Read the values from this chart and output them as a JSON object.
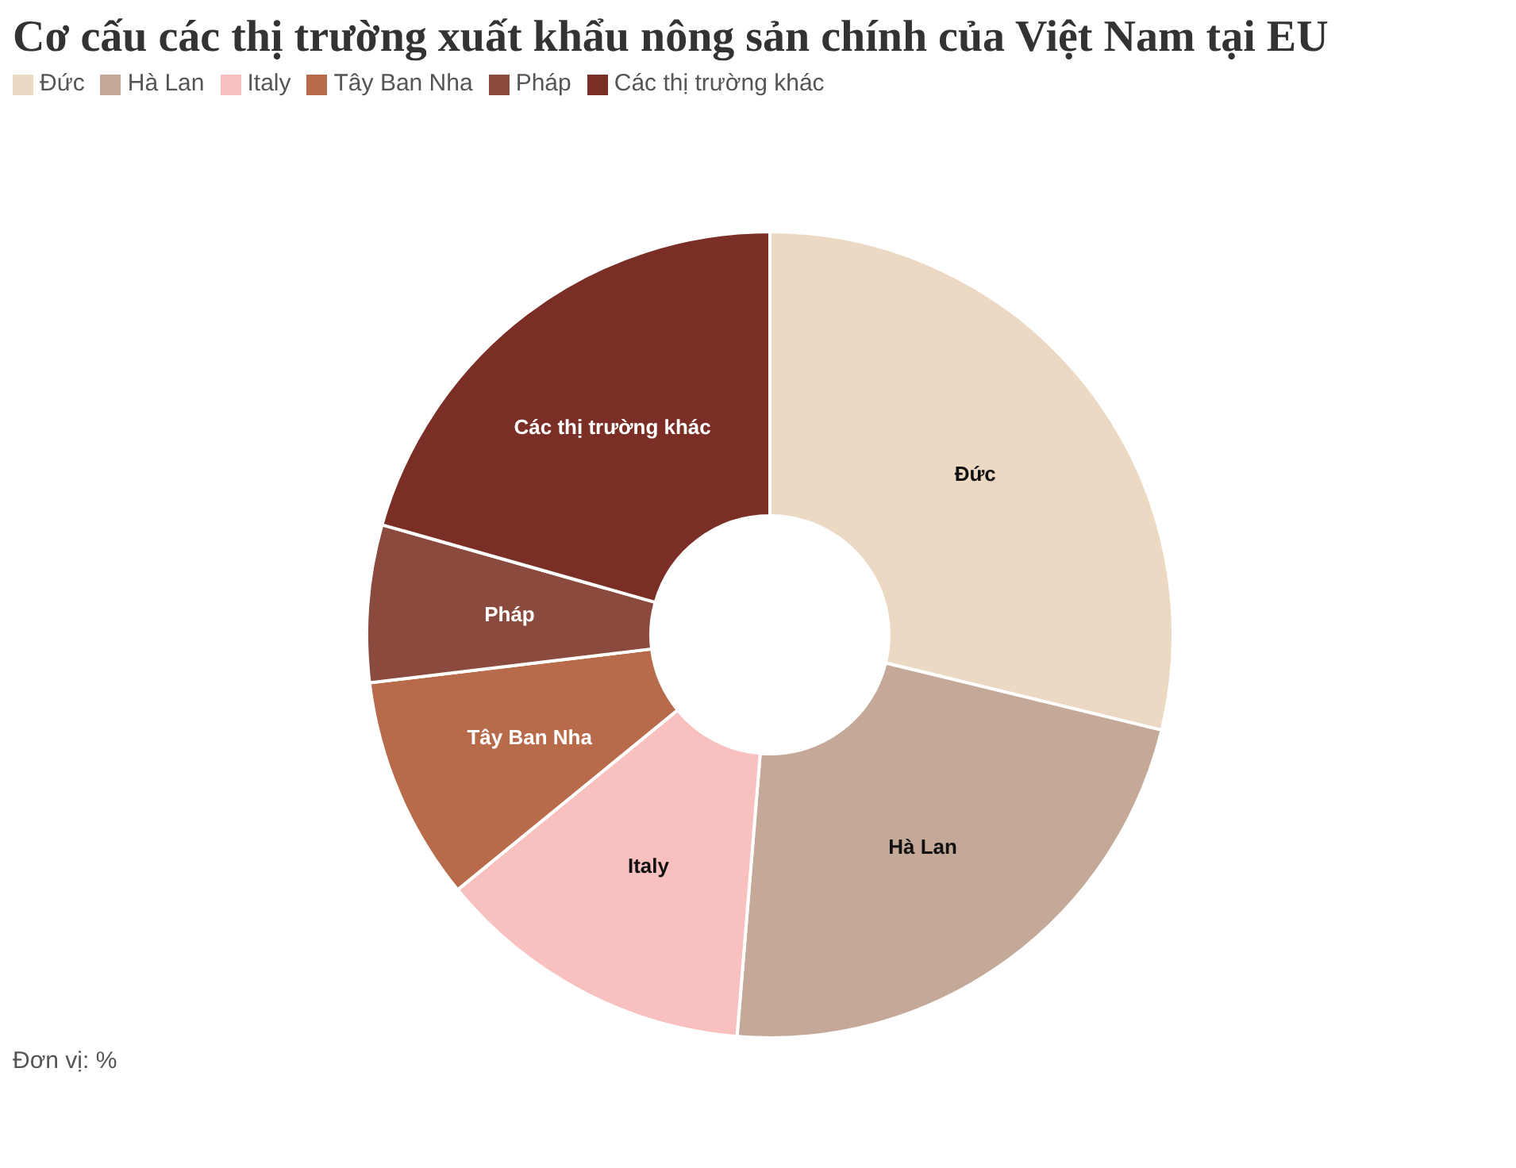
{
  "chart_data": {
    "type": "donut",
    "title": "Cơ cấu các thị trường xuất khẩu nông sản chính của Việt Nam tại EU",
    "categories": [
      "Đức",
      "Hà Lan",
      "Italy",
      "Tây Ban Nha",
      "Pháp",
      "Các thị trường khác"
    ],
    "values": [
      28.8,
      22.5,
      12.8,
      9,
      6.3,
      20.6
    ],
    "colors": [
      "#ecd9c4",
      "#c4a898",
      "#f8c0bf",
      "#b86b4b",
      "#8b4a3e",
      "#7a2e25"
    ],
    "legend": "top left",
    "annotations": [
      "Đơn vị: %"
    ]
  }
}
